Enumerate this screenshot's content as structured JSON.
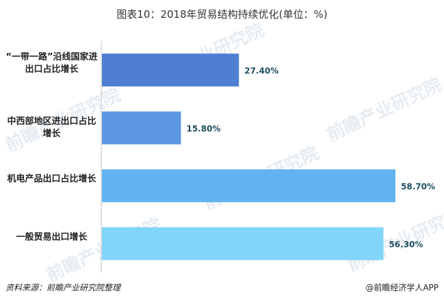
{
  "chart_data": {
    "type": "bar",
    "orientation": "horizontal",
    "title": "图表10：2018年贸易结构持续优化(单位：%)",
    "categories": [
      "“一带一路”沿线国家进出口占比增长",
      "中西部地区进出口占比增长",
      "机电产品出口占比增长",
      "一般贸易出口增长"
    ],
    "values": [
      27.4,
      15.8,
      58.7,
      56.3
    ],
    "value_labels": [
      "27.40%",
      "15.80%",
      "58.70%",
      "56.30%"
    ],
    "bar_colors": [
      "#4f7fd3",
      "#5c98e2",
      "#62b3f0",
      "#82d4fb"
    ],
    "xlabel": "",
    "ylabel": "",
    "xlim": [
      0,
      60
    ],
    "grid": false,
    "legend": "none"
  },
  "footer": {
    "source": "资料来源：前瞻产业研究院整理",
    "credit": "@前瞻经济学人APP"
  },
  "watermark": {
    "text": "前瞻产业研究院"
  }
}
